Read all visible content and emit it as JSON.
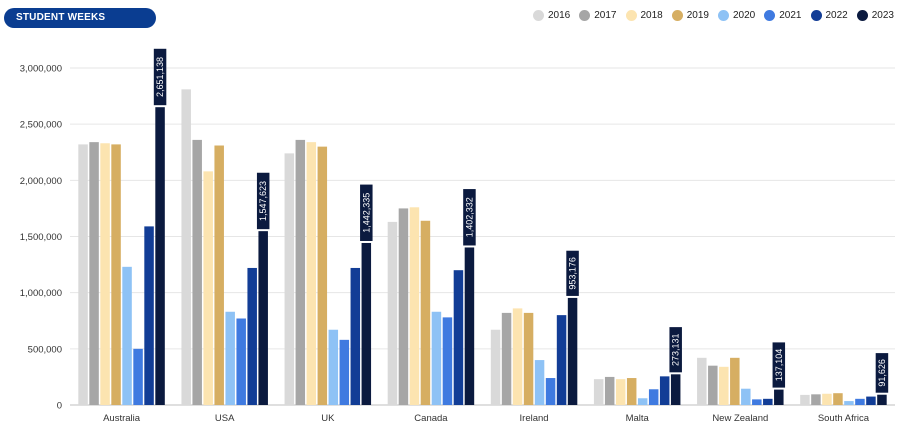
{
  "chart_data": {
    "type": "bar",
    "title": "STUDENT WEEKS",
    "categories": [
      "Australia",
      "USA",
      "UK",
      "Canada",
      "Ireland",
      "Malta",
      "New Zealand",
      "South Africa"
    ],
    "series": [
      {
        "name": "2016",
        "color": "#d9d9d9",
        "values": [
          2320000,
          2810000,
          2240000,
          1630000,
          670000,
          230000,
          420000,
          90000
        ]
      },
      {
        "name": "2017",
        "color": "#a6a6a6",
        "values": [
          2340000,
          2360000,
          2360000,
          1750000,
          820000,
          250000,
          350000,
          95000
        ]
      },
      {
        "name": "2018",
        "color": "#fce4b0",
        "values": [
          2330000,
          2080000,
          2340000,
          1760000,
          860000,
          230000,
          340000,
          100000
        ]
      },
      {
        "name": "2019",
        "color": "#d6ae62",
        "values": [
          2320000,
          2310000,
          2300000,
          1640000,
          820000,
          240000,
          420000,
          105000
        ]
      },
      {
        "name": "2020",
        "color": "#8ec2f5",
        "values": [
          1230000,
          830000,
          670000,
          830000,
          400000,
          60000,
          145000,
          35000
        ]
      },
      {
        "name": "2021",
        "color": "#3f7ae0",
        "values": [
          500000,
          770000,
          580000,
          780000,
          240000,
          140000,
          50000,
          55000
        ]
      },
      {
        "name": "2022",
        "color": "#123d96",
        "values": [
          1590000,
          1220000,
          1220000,
          1200000,
          800000,
          255000,
          55000,
          75000
        ]
      },
      {
        "name": "2023",
        "color": "#0b1a3f",
        "values": [
          2651138,
          1547623,
          1442335,
          1402332,
          953176,
          273131,
          137104,
          91626
        ]
      }
    ],
    "data_labels": [
      "2,651,138",
      "1,547,623",
      "1,442,335",
      "1,402,332",
      "953,176",
      "273,131",
      "137,104",
      "91,626"
    ],
    "y_ticks": [
      "0",
      "500,000",
      "1,000,000",
      "1,500,000",
      "2,000,000",
      "2,500,000",
      "3,000,000"
    ],
    "ylim": [
      0,
      3000000
    ],
    "grid": true,
    "legend_position": "top-right"
  }
}
